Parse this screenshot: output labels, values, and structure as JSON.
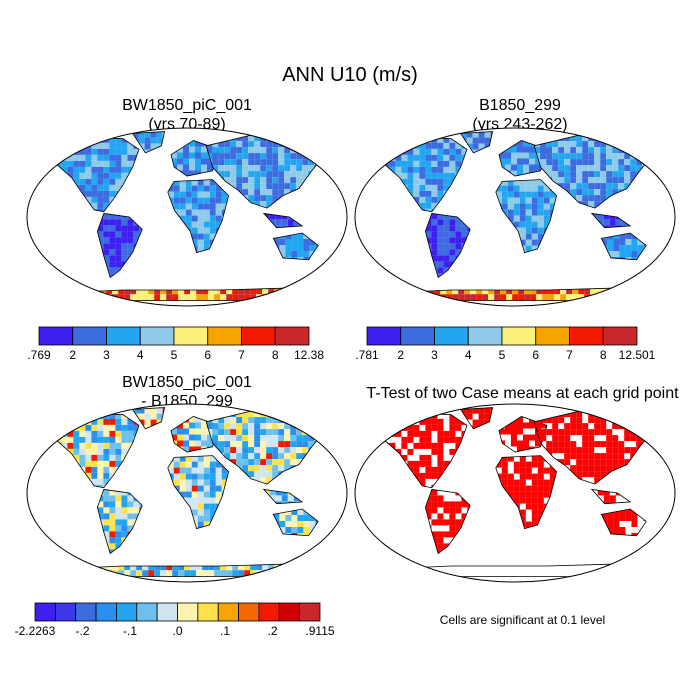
{
  "figure": {
    "title": "ANN U10 (m/s)"
  },
  "panels": [
    {
      "id": "case1",
      "title_line1": "BW1850_piC_001",
      "title_line2": "(yrs 70-89)"
    },
    {
      "id": "case2",
      "title_line1": "B1850_299",
      "title_line2": "(yrs 243-262)"
    },
    {
      "id": "diff",
      "title_line1": "BW1850_piC_001",
      "title_line2": "- B1850_299"
    },
    {
      "id": "ttest",
      "title_line1": "T-Test of two Case means at each grid point",
      "title_line2": ""
    }
  ],
  "colorbars": [
    {
      "id": "case1",
      "labels": [
        ".769",
        "2",
        "3",
        "4",
        "5",
        "6",
        "7",
        "8",
        "12.38"
      ],
      "colors": [
        "#3d1ff0",
        "#3c6ce0",
        "#23a6ef",
        "#8fcbe8",
        "#fbf07a",
        "#f8a400",
        "#f01a00",
        "#c8282c"
      ]
    },
    {
      "id": "case2",
      "labels": [
        ".781",
        "2",
        "3",
        "4",
        "5",
        "6",
        "7",
        "8",
        "12.501"
      ],
      "colors": [
        "#3d1ff0",
        "#3c6ce0",
        "#23a6ef",
        "#8fcbe8",
        "#fbf07a",
        "#f8a400",
        "#f01a00",
        "#c8282c"
      ]
    },
    {
      "id": "diff",
      "labels": [
        "-2.2263",
        "-.2",
        "-.1",
        ".0",
        ".1",
        ".2",
        ".9115"
      ],
      "colors": [
        "#3d1ff0",
        "#3c38e8",
        "#3c6ce0",
        "#2b8ff0",
        "#23a6ef",
        "#6dc0ec",
        "#cfe6f2",
        "#fff3b0",
        "#fde24a",
        "#f8a400",
        "#f56a00",
        "#f01a00",
        "#d10000",
        "#c8282c"
      ]
    }
  ],
  "ttest": {
    "note": "Cells are significant at 0.1 level",
    "significant_color": "#ff0000"
  }
}
